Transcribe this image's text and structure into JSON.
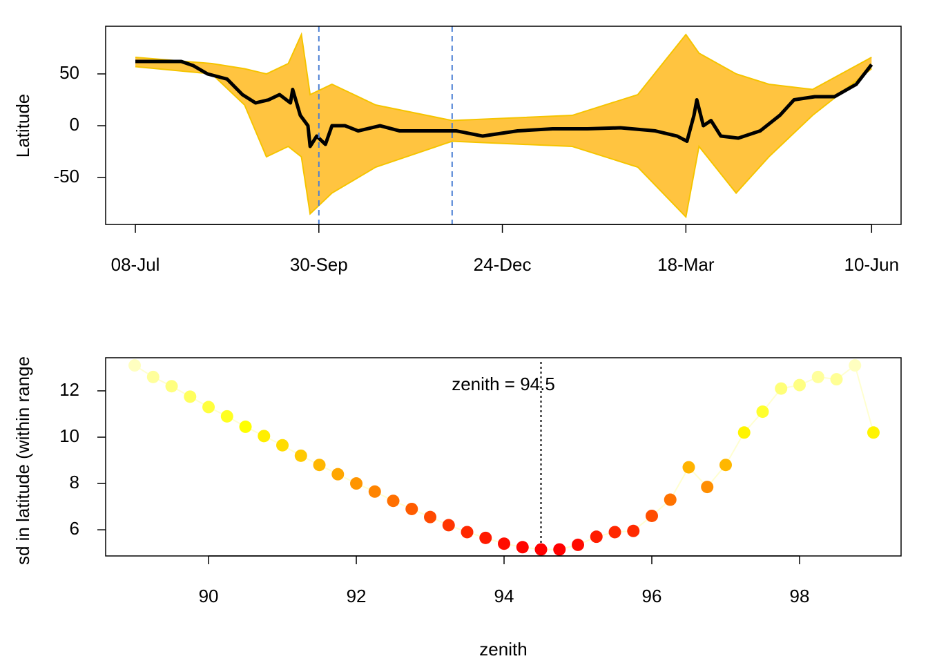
{
  "chart_data": [
    {
      "type": "line",
      "y_label": "Latitude",
      "xlim": [
        -13.6,
        350.5
      ],
      "ylim": [
        -95.3,
        96
      ],
      "xticks": [
        {
          "value": 0,
          "label": "08-Jul"
        },
        {
          "value": 84,
          "label": "30-Sep"
        },
        {
          "value": 168,
          "label": "24-Dec"
        },
        {
          "value": 252,
          "label": "18-Mar"
        },
        {
          "value": 337,
          "label": "10-Jun"
        }
      ],
      "yticks": [
        -50,
        0,
        50
      ],
      "vlines": [
        84,
        145
      ],
      "vline_color": "#4a7fd4",
      "band": {
        "color": "#ffb000",
        "x": [
          0,
          35,
          50,
          60,
          70,
          76,
          80,
          90,
          110,
          145,
          200,
          230,
          252,
          258,
          275,
          290,
          310,
          337
        ],
        "upper": [
          66,
          60,
          55,
          50,
          60,
          88,
          30,
          40,
          20,
          5,
          10,
          30,
          88,
          70,
          50,
          40,
          35,
          66
        ],
        "lower": [
          57,
          50,
          20,
          -30,
          -20,
          -30,
          -85,
          -65,
          -40,
          -15,
          -20,
          -40,
          -88,
          -20,
          -65,
          -30,
          10,
          55
        ]
      },
      "series": [
        {
          "color": "#000000",
          "x": [
            0,
            7,
            14,
            21,
            26.5,
            33,
            42,
            49,
            55,
            61,
            66,
            71,
            72,
            75.5,
            79,
            80,
            83,
            87,
            90,
            96,
            102,
            112,
            121,
            134,
            147,
            159,
            175,
            191,
            207,
            222,
            238,
            248,
            252.5,
            255.7,
            257,
            260,
            263.5,
            268,
            276,
            286,
            295,
            301.5,
            311,
            320,
            330,
            337
          ],
          "values": [
            62,
            62,
            62,
            62,
            58,
            50,
            45,
            30,
            22,
            25,
            30,
            22,
            35,
            10,
            0,
            -20,
            -10,
            -18,
            0,
            0,
            -5,
            0,
            -5,
            -5,
            -5,
            -10,
            -5,
            -3,
            -3,
            -2,
            -5,
            -10,
            -15,
            10,
            25,
            0,
            5,
            -10,
            -12,
            -5,
            10,
            25,
            28,
            28,
            40,
            59
          ]
        }
      ]
    },
    {
      "type": "scatter",
      "x_label": "zenith",
      "y_label": "sd in latitude (within range",
      "annotation": "zenith = 94.5",
      "xlim": [
        88.607,
        99.374
      ],
      "ylim": [
        4.87,
        13.43
      ],
      "xticks": [
        90,
        92,
        94,
        96,
        98
      ],
      "yticks": [
        6,
        8,
        10,
        12
      ],
      "vlines": [
        94.5
      ],
      "vline_color": "#000000",
      "colormap": [
        "#ff0000",
        "#ff8c00",
        "#ffff00",
        "#ffffc0"
      ],
      "line_color": "#ffffd0",
      "x": [
        89,
        89.25,
        89.5,
        89.75,
        90,
        90.25,
        90.5,
        90.75,
        91,
        91.25,
        91.5,
        91.75,
        92,
        92.25,
        92.5,
        92.75,
        93,
        93.25,
        93.5,
        93.75,
        94,
        94.25,
        94.5,
        94.75,
        95,
        95.25,
        95.5,
        95.75,
        96,
        96.25,
        96.5,
        96.75,
        97,
        97.25,
        97.5,
        97.75,
        98,
        98.25,
        98.5,
        98.75,
        99
      ],
      "values": [
        13.1,
        12.6,
        12.2,
        11.75,
        11.3,
        10.9,
        10.45,
        10.05,
        9.65,
        9.2,
        8.8,
        8.4,
        8.0,
        7.65,
        7.25,
        6.9,
        6.55,
        6.2,
        5.9,
        5.65,
        5.4,
        5.25,
        5.15,
        5.15,
        5.35,
        5.7,
        5.9,
        5.95,
        6.6,
        7.3,
        8.7,
        7.85,
        8.8,
        10.2,
        11.1,
        12.1,
        12.25,
        12.6,
        12.5,
        13.1,
        10.2
      ]
    }
  ]
}
